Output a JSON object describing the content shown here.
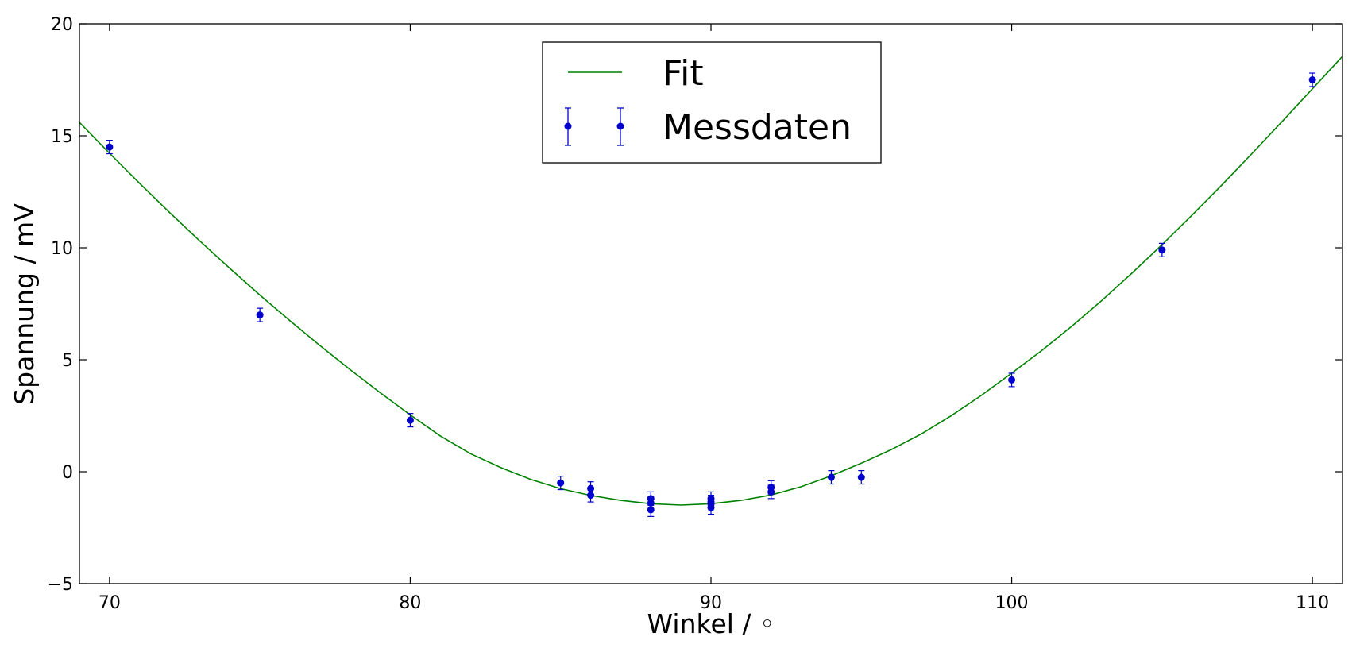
{
  "chart_data": {
    "type": "scatter",
    "title": "",
    "xlabel": "Winkel / ◦",
    "ylabel": "Spannung / mV",
    "xlim": [
      69,
      111
    ],
    "ylim": [
      -5,
      20
    ],
    "xticks": [
      70,
      80,
      90,
      100,
      110
    ],
    "yticks": [
      -5,
      0,
      5,
      10,
      15,
      20
    ],
    "grid": false,
    "legend": {
      "placement": "upper-center",
      "entries": [
        "Fit",
        "Messdaten"
      ]
    },
    "series": [
      {
        "name": "Fit",
        "kind": "line",
        "color": "#008000",
        "x": [
          69,
          70,
          71,
          72,
          73,
          74,
          75,
          76,
          77,
          78,
          79,
          80,
          81,
          82,
          83,
          84,
          85,
          86,
          87,
          88,
          89,
          90,
          91,
          92,
          93,
          94,
          95,
          96,
          97,
          98,
          99,
          100,
          101,
          102,
          103,
          104,
          105,
          106,
          107,
          108,
          109,
          110,
          111
        ],
        "y": [
          15.6,
          14.22,
          12.88,
          11.57,
          10.31,
          9.08,
          7.89,
          6.74,
          5.63,
          4.56,
          3.53,
          2.54,
          1.6,
          0.81,
          0.19,
          -0.34,
          -0.76,
          -1.06,
          -1.28,
          -1.43,
          -1.49,
          -1.43,
          -1.28,
          -1.04,
          -0.67,
          -0.18,
          0.38,
          0.99,
          1.69,
          2.51,
          3.42,
          4.4,
          5.41,
          6.5,
          7.65,
          8.87,
          10.14,
          11.46,
          12.82,
          14.22,
          15.65,
          17.1,
          18.55
        ]
      },
      {
        "name": "Messdaten",
        "kind": "errorbar",
        "color": "#0000cc",
        "x": [
          70,
          75,
          80,
          85,
          86,
          86,
          88,
          88,
          88,
          90,
          90,
          90,
          90,
          92,
          92,
          94,
          95,
          100,
          105,
          110
        ],
        "y": [
          14.5,
          7.0,
          2.3,
          -0.5,
          -0.75,
          -1.05,
          -1.2,
          -1.4,
          -1.7,
          -1.2,
          -1.35,
          -1.45,
          -1.6,
          -0.7,
          -0.9,
          -0.25,
          -0.25,
          4.1,
          9.9,
          17.5
        ],
        "yerr": [
          0.3,
          0.3,
          0.3,
          0.3,
          0.3,
          0.3,
          0.3,
          0.3,
          0.3,
          0.3,
          0.3,
          0.3,
          0.3,
          0.3,
          0.3,
          0.3,
          0.3,
          0.3,
          0.3,
          0.3
        ]
      }
    ]
  }
}
